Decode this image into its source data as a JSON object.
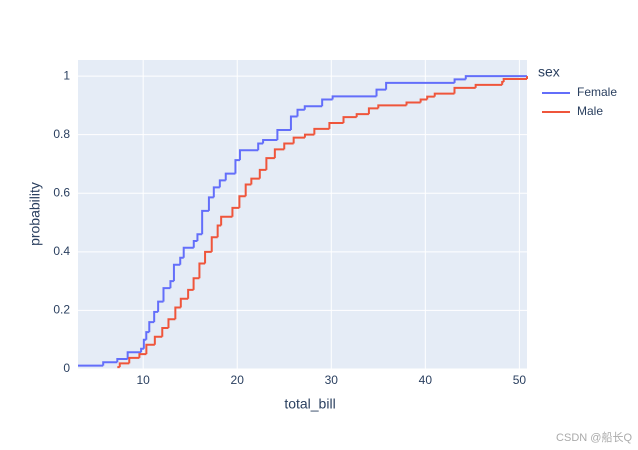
{
  "chart_data": {
    "type": "ecdf",
    "x_label": "total_bill",
    "y_label": "probability",
    "legend_title": "sex",
    "legend_position": "right",
    "xlim": [
      3.07,
      50.81
    ],
    "ylim": [
      0,
      1.055
    ],
    "xticks": [
      10,
      20,
      30,
      40,
      50
    ],
    "yticks": [
      0,
      0.2,
      0.4,
      0.6,
      0.8,
      1
    ],
    "grid": true,
    "series": [
      {
        "name": "Female",
        "color": "#636efa",
        "x": [
          3.07,
          5.75,
          7.25,
          8.35,
          9.78,
          10.07,
          10.33,
          10.65,
          11.17,
          11.59,
          12.16,
          12.9,
          13.27,
          13.94,
          14.31,
          15.38,
          15.77,
          16.27,
          16.99,
          17.51,
          18.15,
          18.78,
          19.81,
          20.29,
          22.23,
          22.75,
          24.27,
          25.71,
          26.41,
          27.18,
          29.03,
          30.14,
          34.81,
          35.83,
          43.11,
          44.3
        ],
        "values": [
          0.0115,
          0.023,
          0.034,
          0.057,
          0.069,
          0.1,
          0.126,
          0.16,
          0.195,
          0.23,
          0.276,
          0.3,
          0.356,
          0.38,
          0.414,
          0.437,
          0.46,
          0.54,
          0.586,
          0.62,
          0.644,
          0.667,
          0.713,
          0.747,
          0.77,
          0.782,
          0.816,
          0.862,
          0.885,
          0.897,
          0.92,
          0.931,
          0.954,
          0.977,
          0.989,
          1
        ]
      },
      {
        "name": "Male",
        "color": "#EF553B",
        "x": [
          7.25,
          7.51,
          8.52,
          9.6,
          10.34,
          11.24,
          12.03,
          12.69,
          13.42,
          14.0,
          14.78,
          15.36,
          15.98,
          16.58,
          17.29,
          17.92,
          18.29,
          19.49,
          20.23,
          20.9,
          21.5,
          22.4,
          23.1,
          24.0,
          25.0,
          26.0,
          27.2,
          28.2,
          29.8,
          31.3,
          32.7,
          34.0,
          35.0,
          38.0,
          39.5,
          40.2,
          41.0,
          43.1,
          45.35,
          48.17,
          48.33,
          50.81
        ],
        "values": [
          0.0064,
          0.019,
          0.038,
          0.051,
          0.083,
          0.11,
          0.14,
          0.17,
          0.21,
          0.24,
          0.27,
          0.31,
          0.36,
          0.4,
          0.45,
          0.49,
          0.52,
          0.55,
          0.59,
          0.63,
          0.65,
          0.68,
          0.72,
          0.75,
          0.77,
          0.79,
          0.8,
          0.82,
          0.84,
          0.86,
          0.87,
          0.89,
          0.9,
          0.91,
          0.92,
          0.93,
          0.94,
          0.96,
          0.97,
          0.98,
          0.99,
          1
        ]
      }
    ]
  },
  "watermark": "CSDN @船长Q"
}
